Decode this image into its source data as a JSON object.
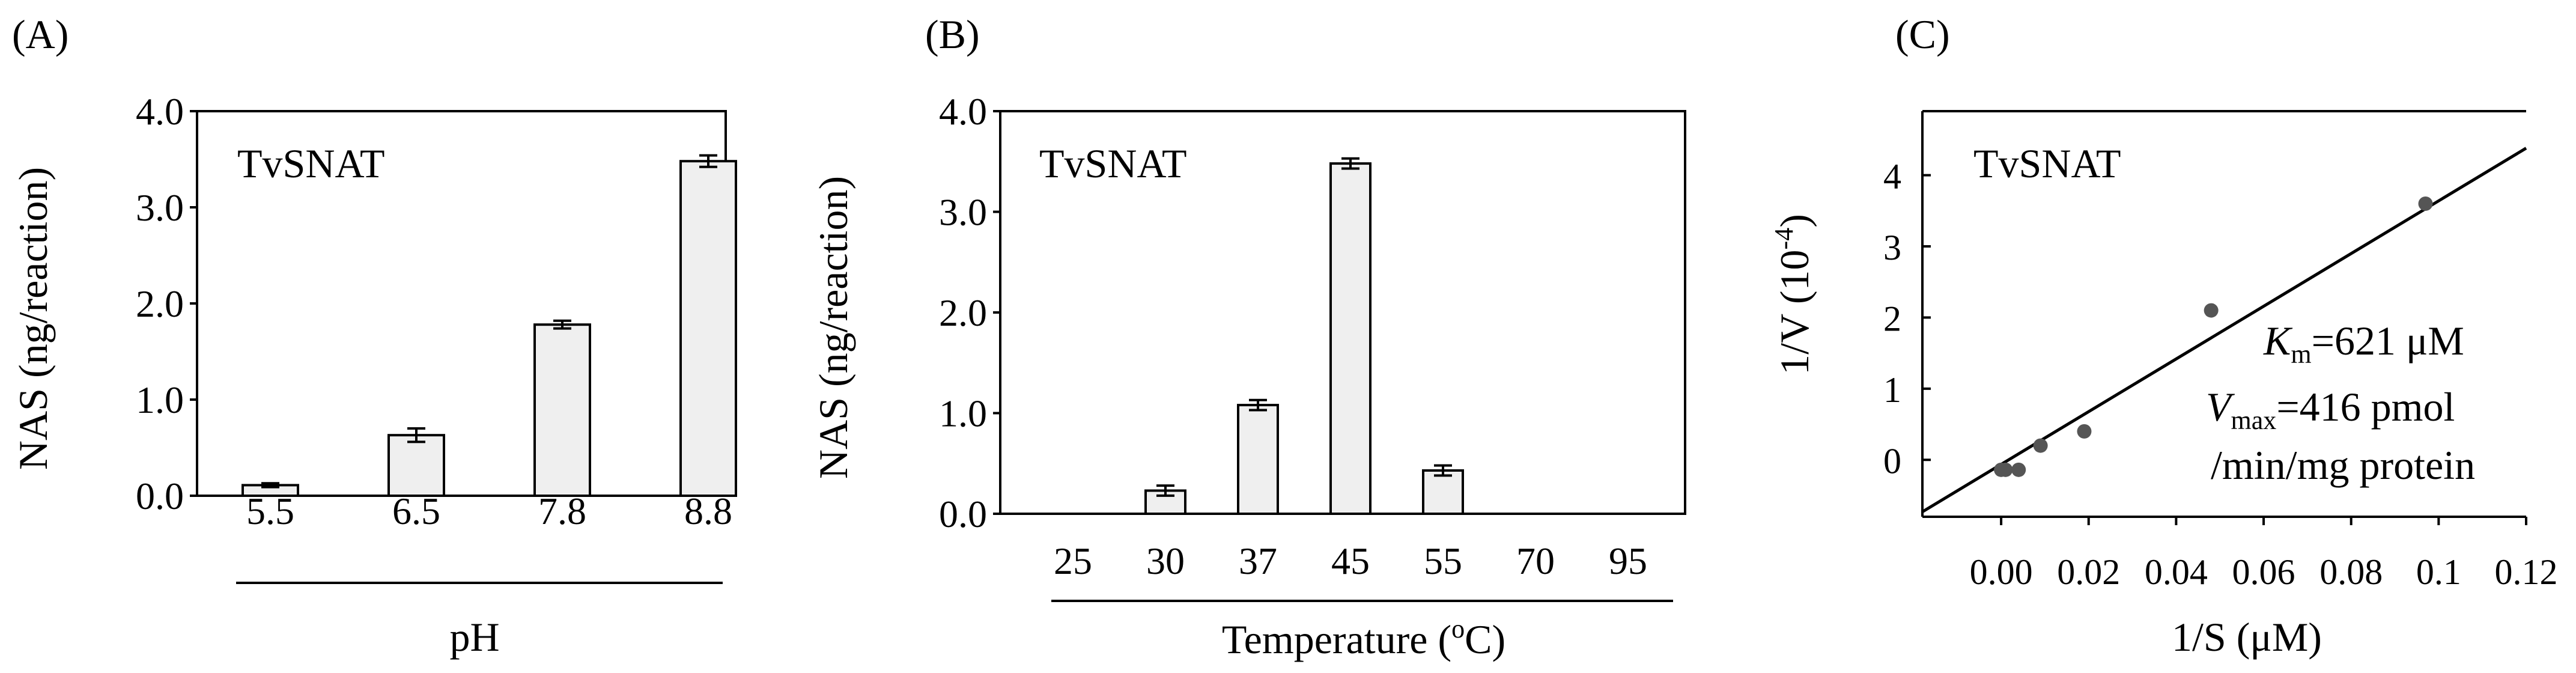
{
  "colors": {
    "bar_fill": "#efefef",
    "line": "#000000",
    "point": "#555555",
    "background": "#ffffff"
  },
  "chart_data": [
    {
      "type": "bar",
      "panel_label": "(A)",
      "annotation": "TvSNAT",
      "categories": [
        "5.5",
        "6.5",
        "7.8",
        "8.8"
      ],
      "values": [
        0.11,
        0.63,
        1.78,
        3.48
      ],
      "errors": [
        0.02,
        0.07,
        0.04,
        0.06
      ],
      "ylim": [
        0,
        4.0
      ],
      "yticks": [
        "0.0",
        "1.0",
        "2.0",
        "3.0",
        "4.0"
      ],
      "ylabel": "NAS (ng/reaction)",
      "xlabel": "pH"
    },
    {
      "type": "bar",
      "panel_label": "(B)",
      "annotation": "TvSNAT",
      "categories": [
        "25",
        "30",
        "37",
        "45",
        "55",
        "70",
        "95"
      ],
      "values": [
        0,
        0.23,
        1.08,
        3.48,
        0.43,
        0,
        0
      ],
      "errors": [
        0,
        0.05,
        0.05,
        0.05,
        0.05,
        0,
        0
      ],
      "ylim": [
        0,
        4.0
      ],
      "yticks": [
        "0.0",
        "1.0",
        "2.0",
        "3.0",
        "4.0"
      ],
      "ylabel": "NAS (ng/reaction)",
      "xlabel": "Temperature (",
      "xlabel_sup": "o",
      "xlabel_end": "C)"
    },
    {
      "type": "scatter",
      "panel_label": "(C)",
      "annotation": "TvSNAT",
      "x": [
        0.0,
        0.001,
        0.004,
        0.009,
        0.019,
        0.048,
        0.097
      ],
      "y": [
        -0.14,
        -0.14,
        -0.14,
        0.2,
        0.4,
        2.1,
        3.6
      ],
      "fit_line": {
        "x": [
          -0.018,
          0.12
        ],
        "y": [
          -0.73,
          4.38
        ]
      },
      "xlim": [
        -0.018,
        0.12
      ],
      "ylim": [
        -0.8,
        4.9
      ],
      "xticks": [
        "0.00",
        "0.02",
        "0.04",
        "0.06",
        "0.08",
        "0.1",
        "0.12"
      ],
      "xtick_values": [
        0,
        0.02,
        0.04,
        0.06,
        0.08,
        0.1,
        0.12
      ],
      "yticks": [
        "0",
        "1",
        "2",
        "3",
        "4"
      ],
      "ytick_values": [
        0,
        1,
        2,
        3,
        4
      ],
      "xlabel": "1/S (μM)",
      "ylabel": "1/V (10",
      "ylabel_sup": "-4",
      "ylabel_end": ")",
      "km_label": "K",
      "km_sub": "m",
      "km_value": "=621 μM",
      "vmax_label": "V",
      "vmax_sub": "max",
      "vmax_value": "=416 pmol",
      "vmax_unit": "/min/mg protein"
    }
  ]
}
